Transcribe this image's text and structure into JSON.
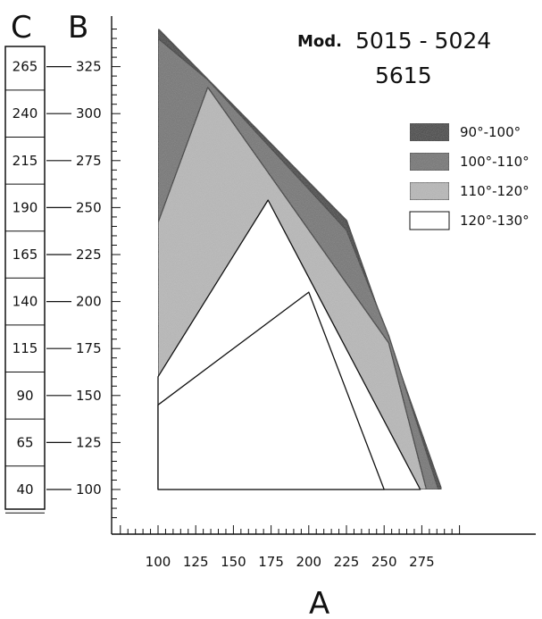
{
  "title": {
    "prefix": "Mod.",
    "models": [
      "5015 - 5024",
      "5615"
    ]
  },
  "colors": {
    "band_90_100": "#2e2e2e",
    "band_100_110": "#6e6e6e",
    "band_110_120": "#b8b8b8",
    "band_120_130": "#ffffff",
    "outline": "#111111"
  },
  "chart_data": {
    "type": "area",
    "xlabel": "A",
    "ylabel_b": "B",
    "ylabel_c": "C",
    "x_ticks": [
      100,
      125,
      150,
      175,
      200,
      225,
      250,
      275
    ],
    "b_ticks": [
      100,
      125,
      150,
      175,
      200,
      225,
      250,
      275,
      300,
      325
    ],
    "c_ticks": [
      40,
      65,
      90,
      115,
      140,
      165,
      190,
      215,
      240,
      265
    ],
    "xlim": [
      100,
      290
    ],
    "ylim_b": [
      100,
      340
    ],
    "c_offset_from_b": -60,
    "series": [
      {
        "name": "90°-100°",
        "color_key": "band_90_100",
        "points": [
          [
            100,
            100
          ],
          [
            100,
            345
          ],
          [
            225,
            243
          ],
          [
            288,
            100
          ]
        ]
      },
      {
        "name": "100°-110°",
        "color_key": "band_100_110",
        "points": [
          [
            100,
            100
          ],
          [
            100,
            340
          ],
          [
            133,
            318
          ],
          [
            225,
            238
          ],
          [
            253,
            182
          ],
          [
            286,
            100
          ]
        ]
      },
      {
        "name": "110°-120°",
        "color_key": "band_110_120",
        "points": [
          [
            100,
            100
          ],
          [
            100,
            242
          ],
          [
            133,
            314
          ],
          [
            253,
            178
          ],
          [
            278,
            100
          ]
        ]
      },
      {
        "name": "120°-130°",
        "color_key": "band_120_130",
        "points": [
          [
            100,
            100
          ],
          [
            100,
            160
          ],
          [
            173,
            254
          ],
          [
            274,
            100
          ]
        ]
      },
      {
        "name": "",
        "color_key": "band_120_130",
        "points": [
          [
            100,
            100
          ],
          [
            100,
            145
          ],
          [
            200,
            205
          ],
          [
            250,
            100
          ]
        ]
      }
    ],
    "legend": [
      {
        "label": "90°-100°",
        "color_key": "band_90_100"
      },
      {
        "label": "100°-110°",
        "color_key": "band_100_110"
      },
      {
        "label": "110°-120°",
        "color_key": "band_110_120"
      },
      {
        "label": "120°-130°",
        "color_key": "band_120_130"
      }
    ],
    "legend_placement": "right",
    "grid": false
  }
}
